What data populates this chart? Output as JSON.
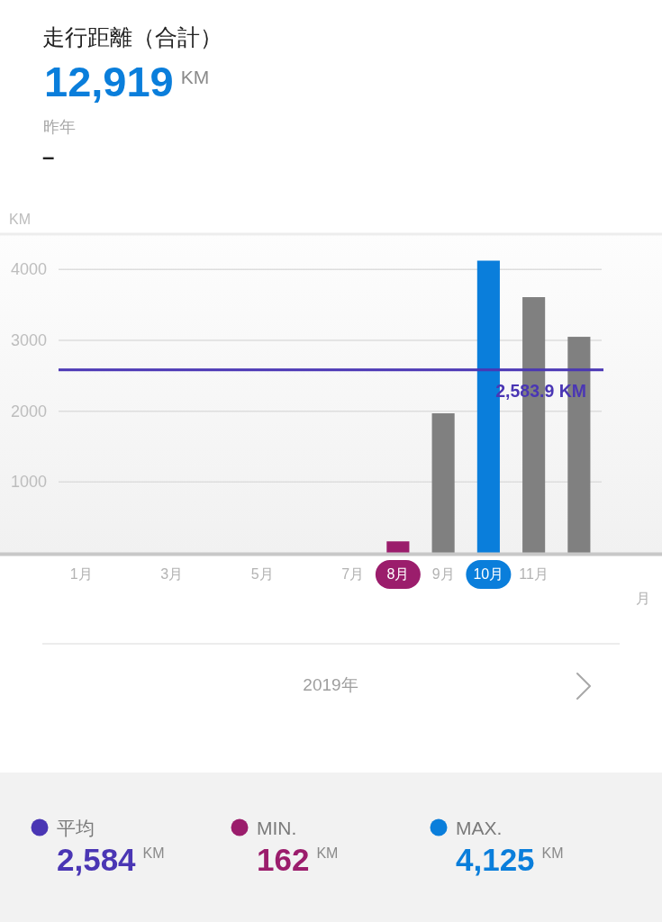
{
  "chart_data": {
    "type": "bar",
    "title": "走行距離（合計）",
    "xlabel": "月",
    "ylabel": "KM",
    "categories": [
      "1月",
      null,
      "3月",
      null,
      "5月",
      null,
      "7月",
      "8月",
      "9月",
      "10月",
      "11月",
      null
    ],
    "values": [
      null,
      null,
      null,
      null,
      null,
      null,
      null,
      162,
      1970,
      4125,
      3610,
      3050
    ],
    "color": "#808080",
    "colors": [
      null,
      null,
      null,
      null,
      null,
      null,
      null,
      "#9b1d6c",
      "#808080",
      "#0a7edb",
      "#808080",
      "#808080"
    ],
    "ylim": [
      0,
      4500
    ],
    "yticks": [
      1000,
      2000,
      3000,
      4000
    ],
    "grid": "y",
    "ref_lines": [
      {
        "axis": "y",
        "value": 2583.9,
        "label": "2,583.9 KM",
        "color": "#4a36b4",
        "line_style": "solid"
      }
    ],
    "annotations": [
      "12,919 KM",
      "昨年",
      "–",
      "2019年",
      "平均",
      "2,584 KM",
      "MIN.",
      "162 KM",
      "MAX.",
      "4,125 KM"
    ]
  }
}
